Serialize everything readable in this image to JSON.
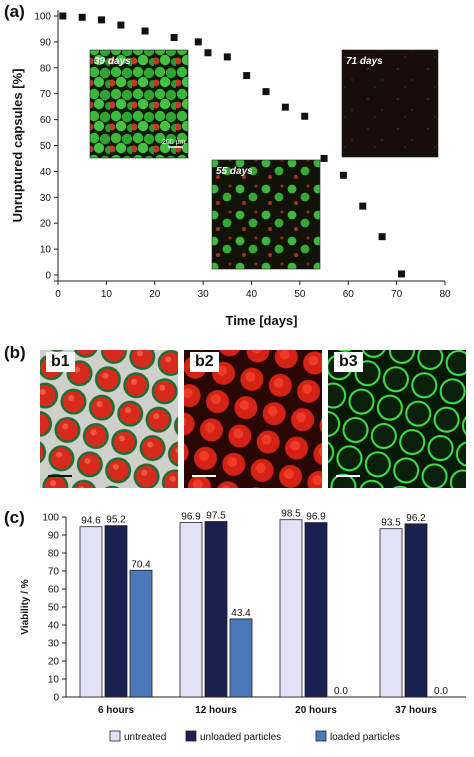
{
  "panel_labels": {
    "a": "(a)",
    "b": "(b)",
    "c": "(c)"
  },
  "chart_data": [
    {
      "type": "scatter",
      "panel": "(a)",
      "xlabel": "Time [days]",
      "ylabel": "Unruptured capsules [%]",
      "xlim": [
        0,
        80
      ],
      "ylim": [
        0,
        100
      ],
      "xticks": [
        0,
        10,
        20,
        30,
        40,
        50,
        60,
        70,
        80
      ],
      "yticks": [
        0,
        10,
        20,
        30,
        40,
        50,
        60,
        70,
        80,
        90,
        100
      ],
      "marker_color": "#111111",
      "x": [
        1,
        5,
        9,
        13,
        18,
        24,
        29,
        31,
        35,
        39,
        43,
        47,
        51,
        55,
        59,
        63,
        67,
        71
      ],
      "y": [
        100,
        99.5,
        98.5,
        96.5,
        94.2,
        91.7,
        90,
        85.8,
        84.2,
        77,
        70.8,
        64.8,
        61.3,
        45,
        38.5,
        26.6,
        14.8,
        0.4
      ],
      "insets": [
        {
          "label": "39 days",
          "scale_bar": "200 µm"
        },
        {
          "label": "55 days"
        },
        {
          "label": "71 days"
        }
      ]
    },
    {
      "type": "bar",
      "panel": "(c)",
      "ylabel": "Viability / %",
      "ylim": [
        0,
        100
      ],
      "yticks": [
        0,
        10,
        20,
        30,
        40,
        50,
        60,
        70,
        80,
        90,
        100
      ],
      "categories": [
        "6 hours",
        "12 hours",
        "20 hours",
        "37 hours"
      ],
      "series": [
        {
          "name": "untreated",
          "color": "#e3e1f5",
          "values": [
            94.6,
            96.9,
            98.5,
            93.5
          ]
        },
        {
          "name": "unloaded particles",
          "color": "#1a2050",
          "values": [
            95.2,
            97.5,
            96.9,
            96.2
          ]
        },
        {
          "name": "loaded particles",
          "color": "#4a78b8",
          "values": [
            70.4,
            43.4,
            0.0,
            0.0
          ]
        }
      ],
      "value_labels": [
        [
          "94.6",
          "95.2",
          "70.4"
        ],
        [
          "96.9",
          "97.5",
          "43.4"
        ],
        [
          "98.5",
          "96.9",
          "0.0"
        ],
        [
          "93.5",
          "96.2",
          "0.0"
        ]
      ]
    }
  ],
  "micrographs_b": [
    {
      "label": "b1"
    },
    {
      "label": "b2"
    },
    {
      "label": "b3"
    }
  ]
}
